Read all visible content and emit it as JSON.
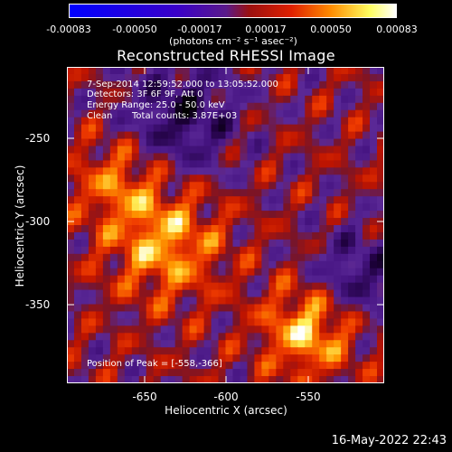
{
  "colorbar": {
    "ticks": [
      "-0.00083",
      "-0.00050",
      "-0.00017",
      "0.00017",
      "0.00050",
      "0.00083"
    ],
    "unit": "(photons cm⁻² s⁻¹ asec⁻²)",
    "colors": [
      "#0000ff",
      "#3a00c8",
      "#6a1f8a",
      "#8a2020",
      "#e02000",
      "#ff8c00",
      "#ffff60",
      "#ffffff"
    ]
  },
  "chart_data": {
    "type": "heatmap",
    "title": "Reconstructed RHESSI Image",
    "xlabel": "Heliocentric X (arcsec)",
    "ylabel": "Heliocentric Y (arcsec)",
    "xlim": [
      -702,
      -586
    ],
    "ylim": [
      -398,
      -213
    ],
    "xticks": [
      -650,
      -600,
      -550
    ],
    "yticks": [
      -250,
      -300,
      -350
    ],
    "zlim": [
      -0.00083,
      0.00083
    ],
    "annotations": {
      "time": "7-Sep-2014 12:59:52.000 to 13:05:52.000",
      "detectors": "Detectors: 3F 6F 9F, Att 0",
      "energy": "Energy Range: 25.0 - 50.0 keV",
      "method": "Clean",
      "counts": "Total counts: 3.87E+03",
      "peak": "Position of Peak = [-558,-366]"
    },
    "peak_position": [
      -558,
      -366
    ]
  },
  "footer": {
    "date": "16-May-2022 22:43"
  }
}
